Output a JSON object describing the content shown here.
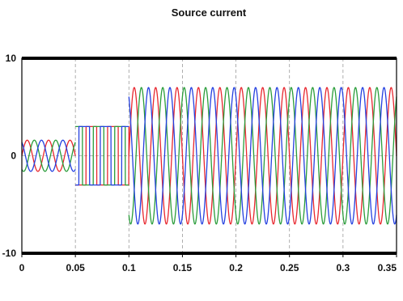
{
  "chart_data": {
    "type": "line",
    "title": "Source current",
    "xlabel": "",
    "ylabel": "",
    "xlim": [
      0,
      0.35
    ],
    "ylim": [
      -10,
      10
    ],
    "x_ticks": [
      "0",
      "0.05",
      "0.1",
      "0.15",
      "0.2",
      "0.25",
      "0.3",
      "0.35"
    ],
    "y_ticks": [
      "10",
      "0",
      "-10"
    ],
    "grid": true,
    "legend": "none",
    "frequency_hz": 50,
    "colors": {
      "phase_a": "#e8272f",
      "phase_b": "#2a9d3a",
      "phase_c": "#2440e0",
      "axes": "#000000",
      "grid": "#9a9a9a"
    },
    "segments": [
      {
        "x_start": 0.0,
        "x_end": 0.05,
        "waveform": "sine",
        "amplitude": 1.6
      },
      {
        "x_start": 0.05,
        "x_end": 0.1,
        "waveform": "square",
        "amplitude": 3.0
      },
      {
        "x_start": 0.1,
        "x_end": 0.35,
        "waveform": "sine",
        "amplitude": 7.0
      }
    ],
    "series": [
      {
        "phase_deg": 0
      },
      {
        "phase_deg": -120
      },
      {
        "phase_deg": 120
      }
    ]
  }
}
